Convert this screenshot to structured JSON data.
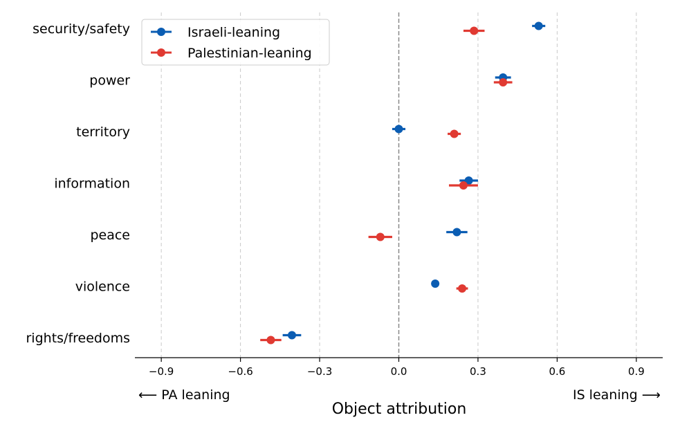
{
  "chart_data": {
    "type": "scatter",
    "title": "",
    "xlabel": "Object attribution",
    "ylabel": "",
    "xlim": [
      -1.0,
      1.0
    ],
    "xticks": [
      -0.9,
      -0.6,
      -0.3,
      0.0,
      0.3,
      0.6,
      0.9
    ],
    "xtick_labels": [
      "−0.9",
      "−0.6",
      "−0.3",
      "0.0",
      "0.3",
      "0.6",
      "0.9"
    ],
    "left_annotation": "⟵  PA leaning",
    "right_annotation": "IS leaning  ⟶",
    "reference_line_x": 0.0,
    "grid": "vertical dashed",
    "legend_position": "top-left",
    "categories": [
      "security/safety",
      "power",
      "territory",
      "information",
      "peace",
      "violence",
      "rights/freedoms"
    ],
    "series": [
      {
        "name": "Israeli-leaning",
        "color": "#0b5db3",
        "values": [
          0.53,
          0.395,
          0.0,
          0.265,
          0.22,
          0.138,
          -0.405
        ],
        "error": [
          0.025,
          0.03,
          0.025,
          0.035,
          0.04,
          0.01,
          0.035
        ]
      },
      {
        "name": "Palestinian-leaning",
        "color": "#e03a32",
        "values": [
          0.285,
          0.395,
          0.21,
          0.245,
          -0.07,
          0.24,
          -0.485
        ],
        "error": [
          0.04,
          0.035,
          0.025,
          0.055,
          0.045,
          0.022,
          0.04
        ]
      }
    ]
  }
}
